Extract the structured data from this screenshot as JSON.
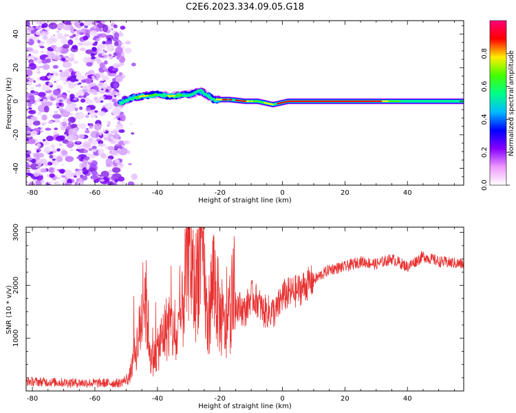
{
  "title": "C2E6.2023.334.09.05.G18",
  "colors": {
    "snr_line": "#e83030",
    "background": "#ffffff",
    "scatter": "#8a2be2",
    "colormap": [
      "#ffffff",
      "#ee99ff",
      "#8800ff",
      "#0000ff",
      "#00bbff",
      "#00ff88",
      "#44ff00",
      "#ffee00",
      "#ff0000",
      "#ff0077"
    ]
  },
  "chart_data": [
    {
      "type": "heatmap",
      "title": "",
      "xlabel": "Height of straight line (km)",
      "ylabel": "Frequency (Hz)",
      "xlim": [
        -82,
        58
      ],
      "ylim": [
        -50,
        48
      ],
      "xticks": [
        -80,
        -60,
        -40,
        -20,
        0,
        20,
        40
      ],
      "yticks": [
        -40,
        -20,
        0,
        20,
        40
      ],
      "colorbar": {
        "label": "Normalized spectral amplitude",
        "range": [
          0,
          1
        ],
        "ticks": [
          "0.0",
          "0.2",
          "0.4",
          "0.6",
          "0.8"
        ],
        "tick_values": [
          0,
          0.2,
          0.4,
          0.6,
          0.8
        ]
      },
      "noise_region_x": [
        -82,
        -51
      ],
      "signal_ridge": [
        {
          "x": -52,
          "y": -1,
          "amp": 0.3
        },
        {
          "x": -48,
          "y": 2,
          "amp": 0.55
        },
        {
          "x": -45,
          "y": 3,
          "amp": 0.85
        },
        {
          "x": -40,
          "y": 4,
          "amp": 0.6
        },
        {
          "x": -36,
          "y": 3,
          "amp": 0.8
        },
        {
          "x": -30,
          "y": 4,
          "amp": 0.6
        },
        {
          "x": -26,
          "y": 6,
          "amp": 0.5
        },
        {
          "x": -22,
          "y": 1,
          "amp": 0.8
        },
        {
          "x": -17,
          "y": 1,
          "amp": 0.9
        },
        {
          "x": -12,
          "y": 0,
          "amp": 0.85
        },
        {
          "x": -8,
          "y": 0,
          "amp": 0.7
        },
        {
          "x": -3,
          "y": -2,
          "amp": 0.85
        },
        {
          "x": 2,
          "y": 0,
          "amp": 0.95
        },
        {
          "x": 10,
          "y": 0,
          "amp": 0.95
        },
        {
          "x": 20,
          "y": 0,
          "amp": 0.95
        },
        {
          "x": 30,
          "y": 0,
          "amp": 0.9
        },
        {
          "x": 38,
          "y": 0,
          "amp": 0.6
        },
        {
          "x": 50,
          "y": 0,
          "amp": 0.5
        },
        {
          "x": 58,
          "y": 0,
          "amp": 0.45
        }
      ]
    },
    {
      "type": "line",
      "title": "",
      "xlabel": "Height of straight line (km)",
      "ylabel": "SNR (10 * v/v)",
      "xlim": [
        -82,
        58
      ],
      "ylim": [
        0,
        3100
      ],
      "xticks": [
        -80,
        -60,
        -40,
        -20,
        0,
        20,
        40
      ],
      "yticks": [
        1000,
        2000,
        3000
      ],
      "series": [
        {
          "x": [
            -82,
            -70,
            -60,
            -52,
            -49,
            -46,
            -44,
            -42,
            -40,
            -38,
            -36,
            -34,
            -32,
            -30,
            -28,
            -26,
            -24,
            -22,
            -20,
            -18,
            -16,
            -14,
            -12,
            -10,
            -8,
            -6,
            -4,
            -2,
            0,
            5,
            10,
            15,
            20,
            25,
            30,
            35,
            40,
            45,
            50,
            58
          ],
          "y": [
            180,
            160,
            150,
            150,
            250,
            1000,
            1900,
            550,
            750,
            1100,
            1300,
            900,
            1500,
            2800,
            1800,
            3000,
            1200,
            2200,
            1400,
            1100,
            1800,
            1600,
            1500,
            1800,
            1700,
            1500,
            1500,
            1500,
            1800,
            1900,
            2100,
            2300,
            2350,
            2450,
            2400,
            2500,
            2350,
            2550,
            2450,
            2400
          ]
        }
      ]
    }
  ]
}
